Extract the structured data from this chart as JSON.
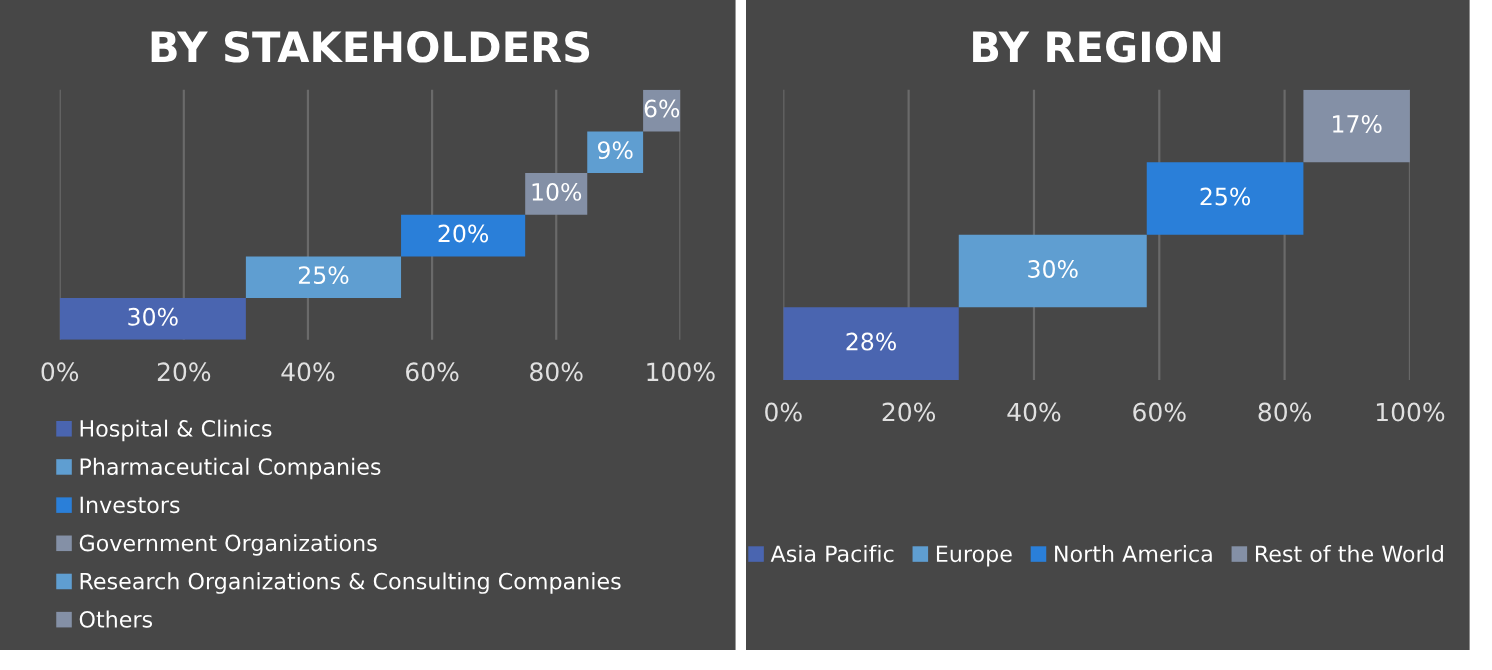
{
  "chart_data": [
    {
      "type": "bar",
      "orientation": "horizontal",
      "title": "BY STAKEHOLDERS",
      "categories": [
        null,
        null,
        null,
        null,
        null,
        null
      ],
      "series": [
        {
          "name": "Hospital & Clinics",
          "color": "#4a65b0",
          "values": [
            null,
            null,
            null,
            null,
            null,
            30
          ],
          "base": [
            null,
            null,
            null,
            null,
            null,
            0
          ],
          "value_labels": [
            null,
            null,
            null,
            null,
            null,
            "30%"
          ]
        },
        {
          "name": "Pharmaceutical Companies",
          "color": "#5f9ed1",
          "values": [
            null,
            null,
            null,
            null,
            25,
            null
          ],
          "base": [
            null,
            null,
            null,
            null,
            30,
            null
          ],
          "value_labels": [
            null,
            null,
            null,
            null,
            "25%",
            null
          ]
        },
        {
          "name": "Investors",
          "color": "#2a7fd9",
          "values": [
            null,
            null,
            null,
            20,
            null,
            null
          ],
          "base": [
            null,
            null,
            null,
            55,
            null,
            null
          ],
          "value_labels": [
            null,
            null,
            null,
            "20%",
            null,
            null
          ]
        },
        {
          "name": "Government Organizations",
          "color": "#8490a6",
          "values": [
            null,
            null,
            10,
            null,
            null,
            null
          ],
          "base": [
            null,
            null,
            75,
            null,
            null,
            null
          ],
          "value_labels": [
            null,
            null,
            "10%",
            null,
            null,
            null
          ]
        },
        {
          "name": "Research Organizations & Consulting Companies",
          "color": "#5f9ed1",
          "values": [
            null,
            9,
            null,
            null,
            null,
            null
          ],
          "base": [
            null,
            85,
            null,
            null,
            null,
            null
          ],
          "value_labels": [
            null,
            "9%",
            null,
            null,
            null,
            null
          ]
        },
        {
          "name": "Others",
          "color": "#8490a6",
          "values": [
            6,
            null,
            null,
            null,
            null,
            null
          ],
          "base": [
            94,
            null,
            null,
            null,
            null,
            null
          ],
          "value_labels": [
            "6%",
            null,
            null,
            null,
            null,
            null
          ]
        }
      ],
      "xlim": [
        0,
        100
      ],
      "xticks": [
        {
          "value": 0,
          "label": "0%"
        },
        {
          "value": 20,
          "label": "20%"
        },
        {
          "value": 40,
          "label": "40%"
        },
        {
          "value": 60,
          "label": "60%"
        },
        {
          "value": 80,
          "label": "80%"
        },
        {
          "value": 100,
          "label": "100%"
        }
      ],
      "grid": "x",
      "legend": "bottom",
      "tick_labels": "x"
    },
    {
      "type": "bar",
      "orientation": "horizontal",
      "title": "BY REGION",
      "categories": [
        null,
        null,
        null,
        null
      ],
      "series": [
        {
          "name": "Asia Pacific",
          "color": "#4a65b0",
          "values": [
            null,
            null,
            null,
            28
          ],
          "base": [
            null,
            null,
            null,
            0
          ],
          "value_labels": [
            null,
            null,
            null,
            "28%"
          ]
        },
        {
          "name": "Europe",
          "color": "#5f9ed1",
          "values": [
            null,
            null,
            30,
            null
          ],
          "base": [
            null,
            null,
            28,
            null
          ],
          "value_labels": [
            null,
            null,
            "30%",
            null
          ]
        },
        {
          "name": "North America",
          "color": "#2a7fd9",
          "values": [
            null,
            25,
            null,
            null
          ],
          "base": [
            null,
            58,
            null,
            null
          ],
          "value_labels": [
            null,
            "25%",
            null,
            null
          ]
        },
        {
          "name": "Rest of the World",
          "color": "#8490a6",
          "values": [
            17,
            null,
            null,
            null
          ],
          "base": [
            83,
            null,
            null,
            null
          ],
          "value_labels": [
            "17%",
            null,
            null,
            null
          ]
        }
      ],
      "xlim": [
        0,
        100
      ],
      "xticks": [
        {
          "value": 0,
          "label": "0%"
        },
        {
          "value": 20,
          "label": "20%"
        },
        {
          "value": 40,
          "label": "40%"
        },
        {
          "value": 60,
          "label": "60%"
        },
        {
          "value": 80,
          "label": "80%"
        },
        {
          "value": 100,
          "label": "100%"
        }
      ],
      "grid": "x",
      "legend": "bottom",
      "tick_labels": "x"
    }
  ]
}
